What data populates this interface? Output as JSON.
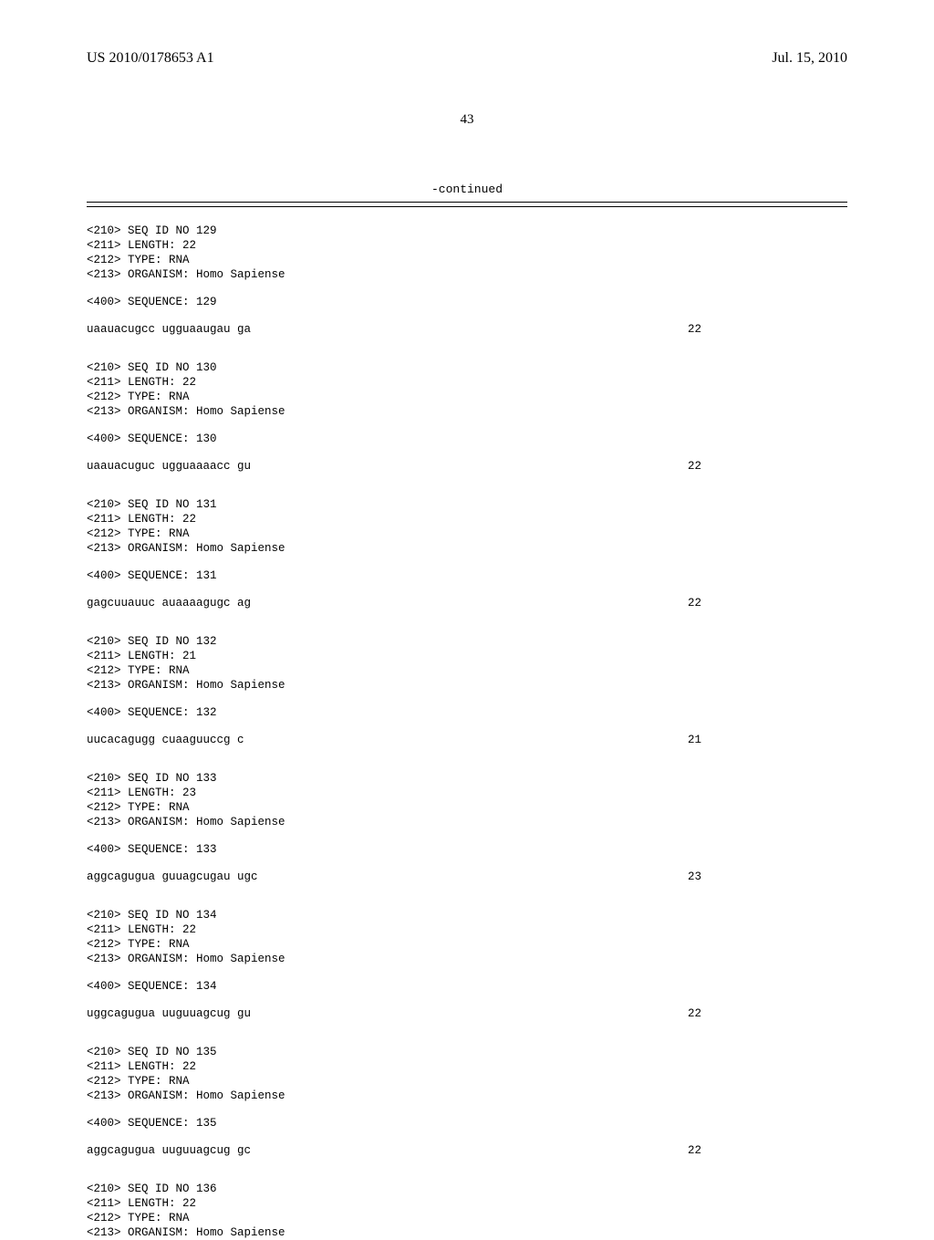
{
  "header": {
    "pub_number": "US 2010/0178653 A1",
    "pub_date": "Jul. 15, 2010"
  },
  "page_number": "43",
  "continued_label": "-continued",
  "sequences": [
    {
      "id": "129",
      "length": "22",
      "type": "RNA",
      "organism": "Homo Sapiense",
      "sequence_line": "uaauacugcc ugguaaugau ga",
      "seq_len": "22"
    },
    {
      "id": "130",
      "length": "22",
      "type": "RNA",
      "organism": "Homo Sapiense",
      "sequence_line": "uaauacuguc ugguaaaacc gu",
      "seq_len": "22"
    },
    {
      "id": "131",
      "length": "22",
      "type": "RNA",
      "organism": "Homo Sapiense",
      "sequence_line": "gagcuuauuc auaaaagugc ag",
      "seq_len": "22"
    },
    {
      "id": "132",
      "length": "21",
      "type": "RNA",
      "organism": "Homo Sapiense",
      "sequence_line": "uucacagugg cuaaguuccg c",
      "seq_len": "21"
    },
    {
      "id": "133",
      "length": "23",
      "type": "RNA",
      "organism": "Homo Sapiense",
      "sequence_line": "aggcagugua guuagcugau ugc",
      "seq_len": "23"
    },
    {
      "id": "134",
      "length": "22",
      "type": "RNA",
      "organism": "Homo Sapiense",
      "sequence_line": "uggcagugua uuguuagcug gu",
      "seq_len": "22"
    },
    {
      "id": "135",
      "length": "22",
      "type": "RNA",
      "organism": "Homo Sapiense",
      "sequence_line": "aggcagugua uuguuagcug gc",
      "seq_len": "22"
    },
    {
      "id": "136",
      "length": "22",
      "type": "RNA",
      "organism": "Homo Sapiense",
      "sequence_line": null,
      "seq_len": null
    }
  ],
  "labels": {
    "seq_id_prefix": "<210> SEQ ID NO ",
    "length_prefix": "<211> LENGTH: ",
    "type_prefix": "<212> TYPE: ",
    "organism_prefix": "<213> ORGANISM: ",
    "sequence_prefix": "<400> SEQUENCE: "
  }
}
